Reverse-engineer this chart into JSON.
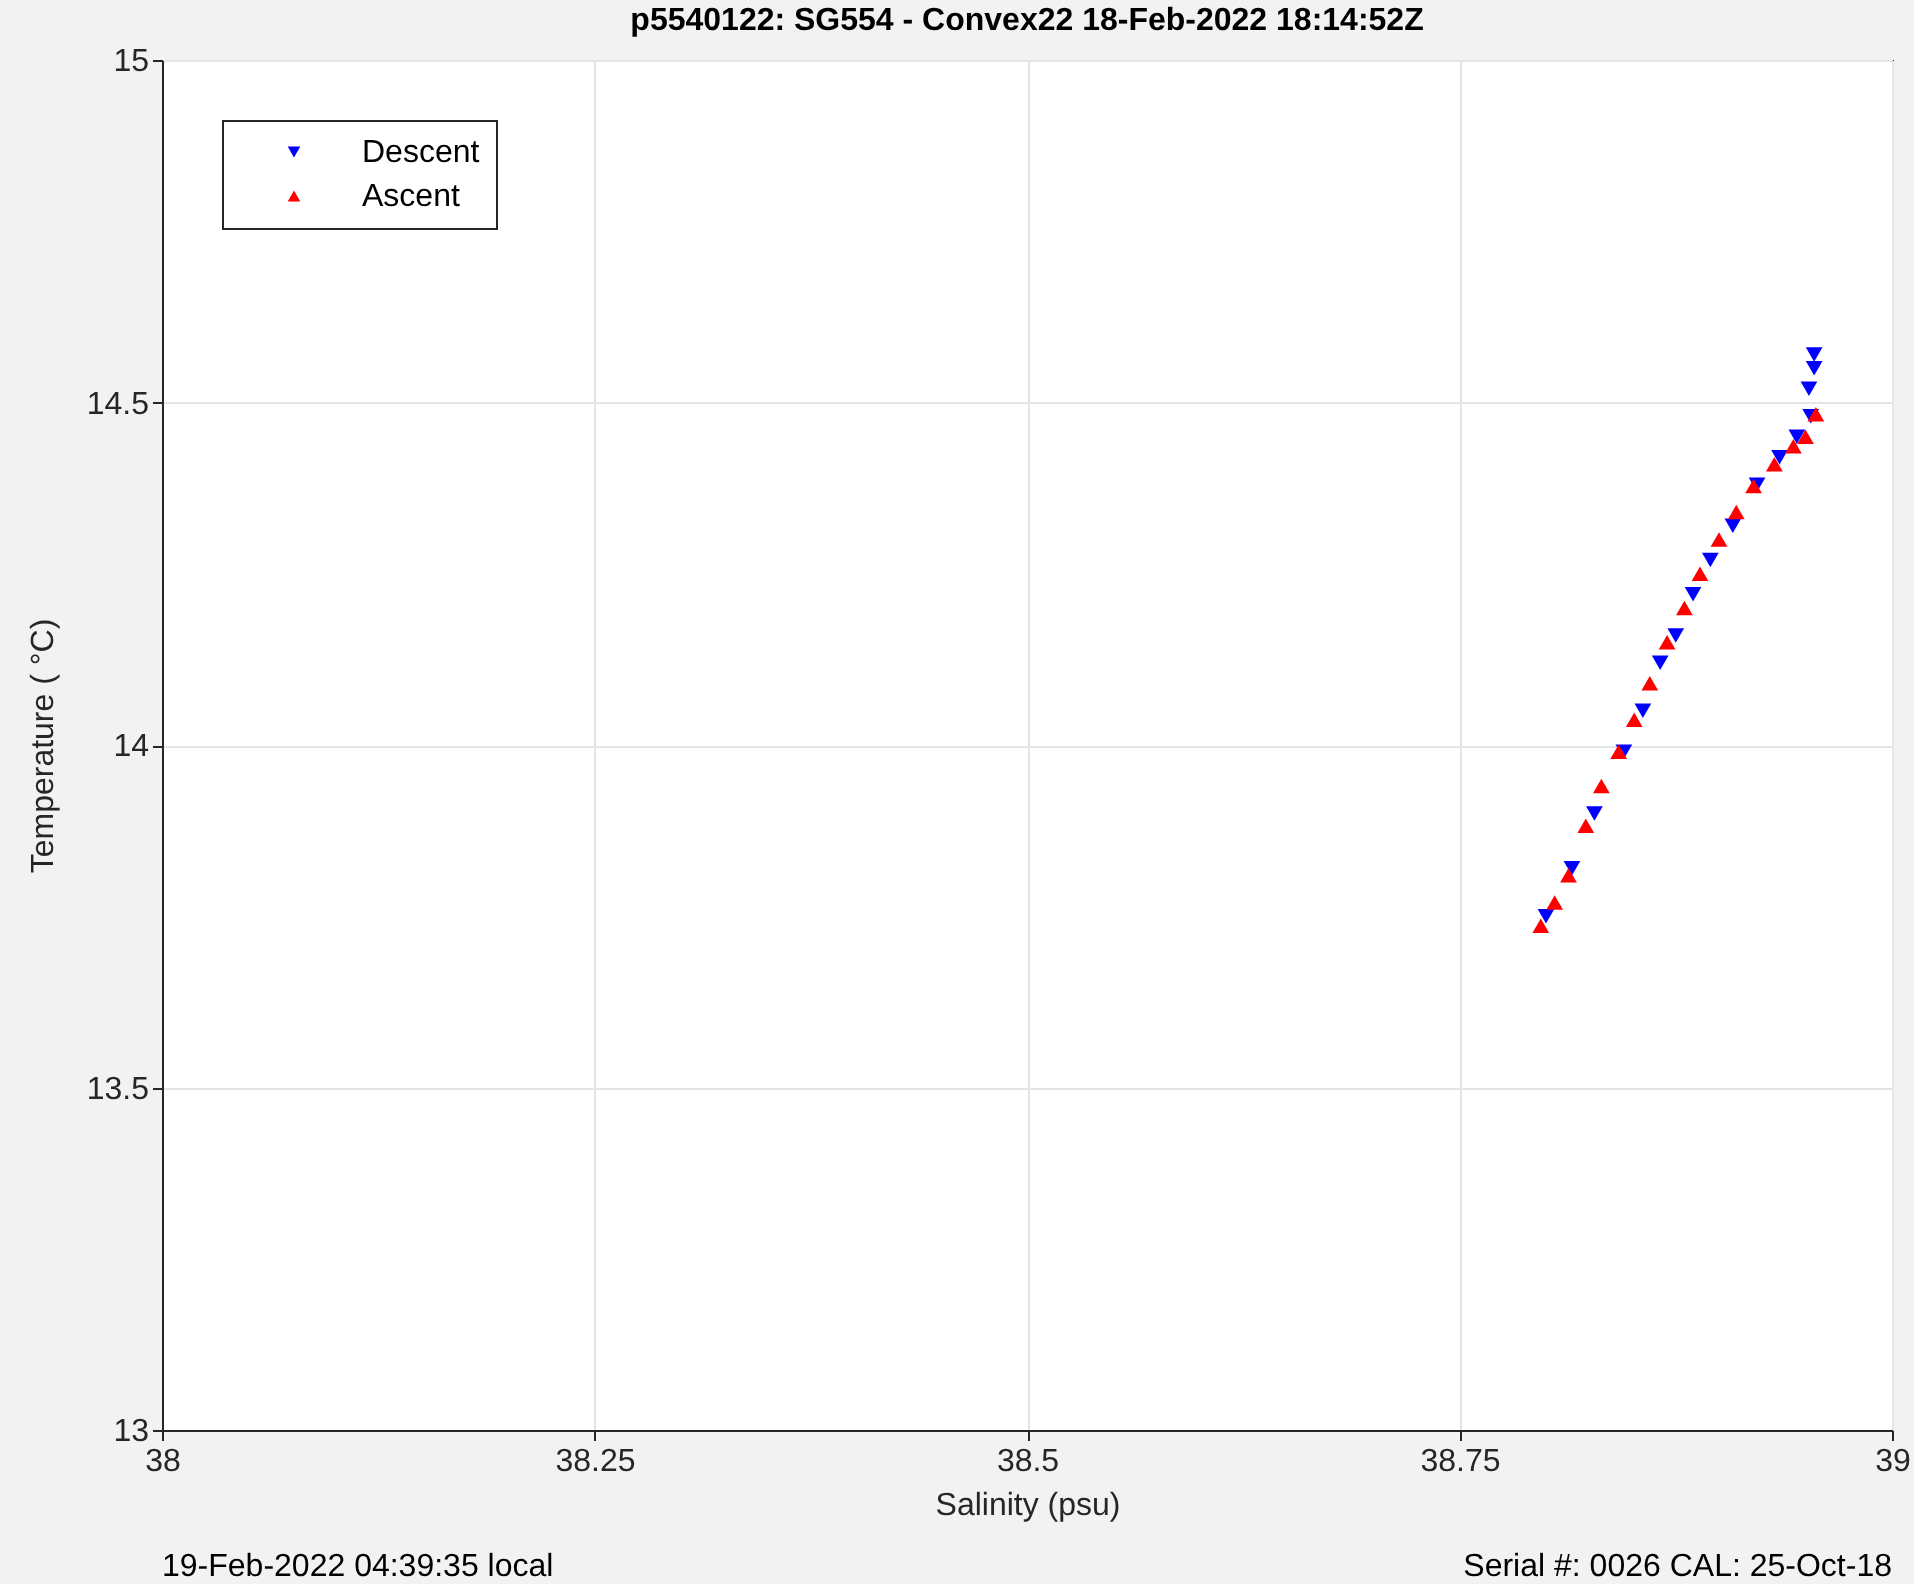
{
  "chart_data": {
    "type": "scatter",
    "title": "p5540122: SG554 - Convex22 18-Feb-2022 18:14:52Z",
    "xlabel": "Salinity (psu)",
    "ylabel": "Temperature (   °C)",
    "xlim": [
      38,
      39
    ],
    "xticks": [
      38,
      38.25,
      38.5,
      38.75,
      39
    ],
    "ylim": [
      13,
      15
    ],
    "yticks": [
      13,
      13.5,
      14,
      14.5,
      15
    ],
    "grid": true,
    "legend": "top left",
    "annotations": [
      "19-Feb-2022 04:39:35 local",
      "Serial #: 0026 CAL: 25-Oct-18"
    ],
    "series": [
      {
        "name": "Descent",
        "color": "#0000ff",
        "marker": "triangle-down",
        "x": [
          38.8,
          38.815,
          38.828,
          38.845,
          38.856,
          38.866,
          38.875,
          38.885,
          38.895,
          38.908,
          38.922,
          38.935,
          38.945,
          38.953,
          38.952,
          38.955,
          38.955
        ],
        "values": [
          13.75,
          13.82,
          13.9,
          13.99,
          14.05,
          14.12,
          14.16,
          14.22,
          14.27,
          14.32,
          14.38,
          14.42,
          14.45,
          14.48,
          14.52,
          14.55,
          14.57
        ]
      },
      {
        "name": "Ascent",
        "color": "#ff0000",
        "marker": "triangle",
        "x": [
          38.797,
          38.805,
          38.813,
          38.823,
          38.832,
          38.842,
          38.851,
          38.86,
          38.87,
          38.88,
          38.889,
          38.9,
          38.91,
          38.92,
          38.932,
          38.943,
          38.95,
          38.956
        ],
        "values": [
          13.736,
          13.77,
          13.81,
          13.882,
          13.94,
          13.99,
          14.037,
          14.09,
          14.15,
          14.2,
          14.25,
          14.3,
          14.34,
          14.378,
          14.41,
          14.436,
          14.45,
          14.483
        ]
      }
    ]
  }
}
